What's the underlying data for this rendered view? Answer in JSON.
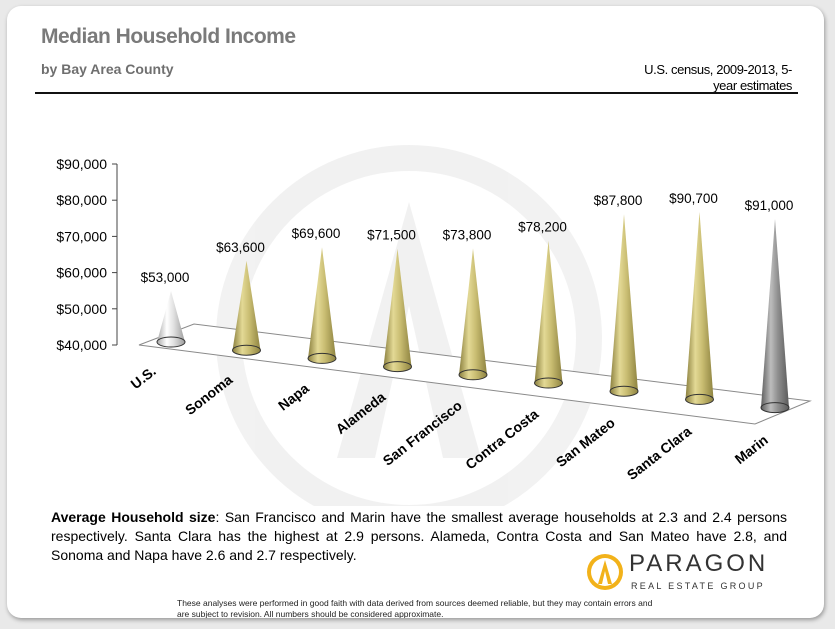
{
  "header": {
    "title": "Median Household Income",
    "subtitle": "by Bay Area County",
    "source": "U.S. census, 2009-2013, 5-year estimates"
  },
  "chart_data": {
    "type": "bar",
    "shape": "cone",
    "categories": [
      "U.S.",
      "Sonoma",
      "Napa",
      "Alameda",
      "San Francisco",
      "Contra Costa",
      "San Mateo",
      "Santa Clara",
      "Marin"
    ],
    "values": [
      53000,
      63600,
      69600,
      71500,
      73800,
      78200,
      87800,
      90700,
      91000
    ],
    "data_labels": [
      "$53,000",
      "$63,600",
      "$69,600",
      "$71,500",
      "$73,800",
      "$78,200",
      "$87,800",
      "$90,700",
      "$91,000"
    ],
    "yticks": [
      "$40,000",
      "$50,000",
      "$60,000",
      "$70,000",
      "$80,000",
      "$90,000"
    ],
    "ylim": [
      40000,
      90000
    ],
    "colors": {
      "U.S.": "#e0e0e0",
      "county": "#c9bd72",
      "Marin": "#8f8f8f"
    }
  },
  "footer": {
    "note_bold": "Average Household size",
    "note_text": ": San Francisco and Marin have the smallest average households at 2.3 and 2.4 persons respectively. Santa Clara has the highest at 2.9 persons. Alameda, Contra Costa and San Mateo have 2.8, and Sonoma and Napa have 2.6 and 2.7 respectively.",
    "logo_name": "PARAGON",
    "logo_tagline": "REAL ESTATE GROUP",
    "disclaimer": "These analyses were performed in good faith with data derived from sources deemed reliable, but they may contain errors and are subject to revision. All numbers should be considered approximate."
  }
}
